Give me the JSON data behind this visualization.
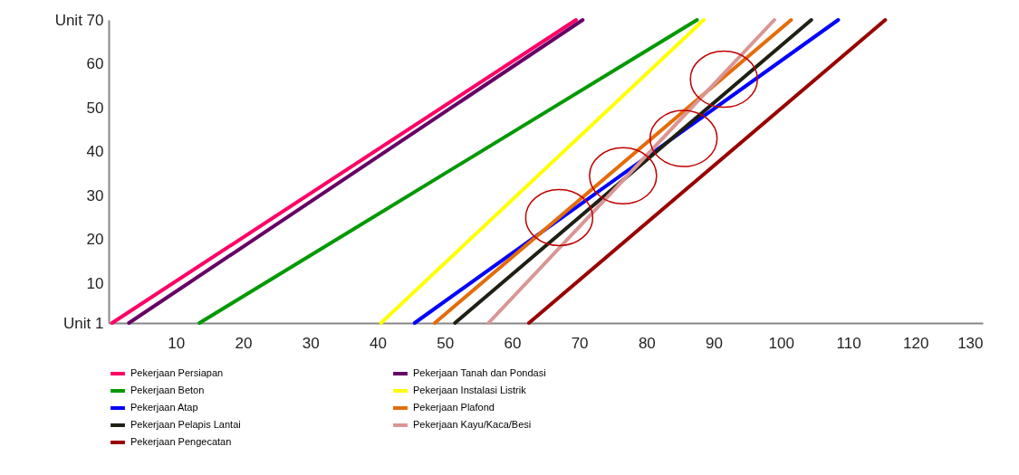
{
  "chart_data": {
    "type": "line",
    "xlim": [
      0,
      130
    ],
    "xticks": [
      10,
      20,
      30,
      40,
      50,
      60,
      70,
      80,
      90,
      100,
      110,
      120,
      130
    ],
    "ylim": [
      1,
      70
    ],
    "yticks": [
      {
        "value": 1,
        "label": "Unit  1"
      },
      10,
      20,
      30,
      40,
      50,
      60,
      {
        "value": 70,
        "label": "Unit 70"
      }
    ],
    "grid": false,
    "legend": "bottom",
    "marker": "none",
    "line_style": "solid",
    "series": [
      {
        "name": "Pekerjaan Persiapan",
        "color": "#ff0066",
        "x": [
          0.5,
          69.5
        ],
        "values": [
          1,
          70
        ]
      },
      {
        "name": "Pekerjaan Tanah dan Pondasi",
        "color": "#660066",
        "x": [
          3,
          70.5
        ],
        "values": [
          1,
          70
        ]
      },
      {
        "name": "Pekerjaan Beton",
        "color": "#009900",
        "x": [
          13.5,
          87.5
        ],
        "values": [
          1,
          70
        ]
      },
      {
        "name": "Pekerjaan Instalasi Listrik",
        "color": "#ffff00",
        "x": [
          40.5,
          88.5
        ],
        "values": [
          1,
          70
        ]
      },
      {
        "name": "Pekerjaan Atap",
        "color": "#0000ff",
        "x": [
          45.5,
          108.5
        ],
        "values": [
          1,
          70
        ]
      },
      {
        "name": "Pekerjaan Plafond",
        "color": "#e46c0a",
        "x": [
          48.5,
          101.5
        ],
        "values": [
          1,
          70
        ]
      },
      {
        "name": "Pekerjaan Pelapis Lantai",
        "color": "#1f1f14",
        "x": [
          51.5,
          104.5
        ],
        "values": [
          1,
          70
        ]
      },
      {
        "name": "Pekerjaan Kayu/Kaca/Besi",
        "color": "#d99694",
        "x": [
          56.5,
          99
        ],
        "values": [
          1,
          70
        ]
      },
      {
        "name": "Pekerjaan Pengecatan",
        "color": "#990000",
        "x": [
          62.5,
          115.5
        ],
        "values": [
          1,
          70
        ]
      }
    ]
  }
}
